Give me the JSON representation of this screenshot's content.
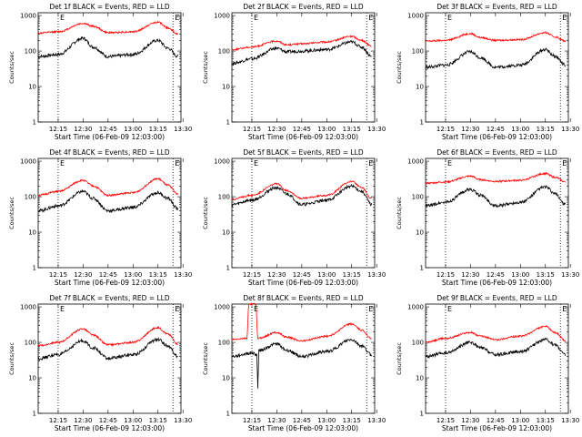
{
  "figure": {
    "panel_titles_note": "",
    "xlabel_template": "Start Time (06-Feb-09 12:03:00)"
  },
  "colors": {
    "events": "#000000",
    "lld": "#ff0000",
    "axes": "#000000",
    "marker": "#000000"
  },
  "chart_data": [
    {
      "type": "line",
      "title": "Det 1f BLACK = Events, RED = LLD",
      "xlabel": "Start Time (06-Feb-09 12:03:00)",
      "ylabel": "Counts/sec",
      "scale": "log",
      "x_ticks": [
        "12:15",
        "12:30",
        "12:45",
        "13:00",
        "13:15",
        "13:30"
      ],
      "y_ticks": [
        "1",
        "10",
        "100",
        "1000"
      ],
      "ylim": [
        1,
        1200
      ],
      "vlines": [
        "12:15",
        "13:24"
      ],
      "marker_labels": [
        "E",
        "E"
      ],
      "series": [
        {
          "values": [
            [
              12.05,
              70
            ],
            [
              12.25,
              80
            ],
            [
              12.5,
              230
            ],
            [
              12.6,
              130
            ],
            [
              12.75,
              70
            ],
            [
              13.0,
              80
            ],
            [
              13.25,
              200
            ],
            [
              13.35,
              120
            ],
            [
              13.45,
              70
            ]
          ]
        },
        {
          "values": [
            [
              12.05,
              320
            ],
            [
              12.25,
              350
            ],
            [
              12.5,
              600
            ],
            [
              12.6,
              500
            ],
            [
              12.75,
              330
            ],
            [
              13.0,
              350
            ],
            [
              13.25,
              650
            ],
            [
              13.35,
              450
            ],
            [
              13.45,
              300
            ]
          ]
        }
      ]
    },
    {
      "type": "line",
      "title": "Det 2f BLACK = Events, RED = LLD",
      "xlabel": "Start Time (06-Feb-09 12:03:00)",
      "ylabel": "Counts/sec",
      "scale": "log",
      "x_ticks": [
        "12:15",
        "12:30",
        "12:45",
        "13:00",
        "13:15",
        "13:30"
      ],
      "y_ticks": [
        "1",
        "10",
        "100",
        "1000"
      ],
      "ylim": [
        1,
        1200
      ],
      "vlines": [
        "12:15",
        "13:24"
      ],
      "marker_labels": [
        "E",
        "E"
      ],
      "series": [
        {
          "values": [
            [
              12.05,
              45
            ],
            [
              12.25,
              60
            ],
            [
              12.5,
              120
            ],
            [
              12.6,
              95
            ],
            [
              12.75,
              100
            ],
            [
              13.0,
              110
            ],
            [
              13.25,
              180
            ],
            [
              13.35,
              130
            ],
            [
              13.45,
              70
            ]
          ]
        },
        {
          "values": [
            [
              12.05,
              110
            ],
            [
              12.25,
              130
            ],
            [
              12.5,
              190
            ],
            [
              12.6,
              150
            ],
            [
              12.75,
              160
            ],
            [
              13.0,
              180
            ],
            [
              13.25,
              260
            ],
            [
              13.35,
              200
            ],
            [
              13.45,
              140
            ]
          ]
        }
      ]
    },
    {
      "type": "line",
      "title": "Det 3f BLACK = Events, RED = LLD",
      "xlabel": "Start Time (06-Feb-09 12:03:00)",
      "ylabel": "Counts/sec",
      "scale": "log",
      "x_ticks": [
        "12:15",
        "12:30",
        "12:45",
        "13:00",
        "13:15",
        "13:30"
      ],
      "y_ticks": [
        "1",
        "10",
        "100",
        "1000"
      ],
      "ylim": [
        1,
        1200
      ],
      "vlines": [
        "12:15",
        "13:24"
      ],
      "marker_labels": [
        "E",
        "E"
      ],
      "series": [
        {
          "values": [
            [
              12.05,
              35
            ],
            [
              12.25,
              40
            ],
            [
              12.5,
              95
            ],
            [
              12.6,
              65
            ],
            [
              12.75,
              35
            ],
            [
              13.0,
              40
            ],
            [
              13.25,
              110
            ],
            [
              13.35,
              70
            ],
            [
              13.45,
              40
            ]
          ]
        },
        {
          "values": [
            [
              12.05,
              190
            ],
            [
              12.25,
              200
            ],
            [
              12.5,
              310
            ],
            [
              12.6,
              240
            ],
            [
              12.75,
              200
            ],
            [
              13.0,
              210
            ],
            [
              13.25,
              330
            ],
            [
              13.35,
              250
            ],
            [
              13.45,
              190
            ]
          ]
        }
      ]
    },
    {
      "type": "line",
      "title": "Det 4f BLACK = Events, RED = LLD",
      "xlabel": "Start Time (06-Feb-09 12:03:00)",
      "ylabel": "Counts/sec",
      "scale": "log",
      "x_ticks": [
        "12:15",
        "12:30",
        "12:45",
        "13:00",
        "13:15",
        "13:30"
      ],
      "y_ticks": [
        "1",
        "10",
        "100",
        "1000"
      ],
      "ylim": [
        1,
        1200
      ],
      "vlines": [
        "12:15",
        "13:24"
      ],
      "marker_labels": [
        "E",
        "E"
      ],
      "series": [
        {
          "values": [
            [
              12.05,
              40
            ],
            [
              12.25,
              55
            ],
            [
              12.5,
              140
            ],
            [
              12.6,
              90
            ],
            [
              12.75,
              40
            ],
            [
              13.0,
              50
            ],
            [
              13.25,
              130
            ],
            [
              13.35,
              90
            ],
            [
              13.45,
              45
            ]
          ]
        },
        {
          "values": [
            [
              12.05,
              110
            ],
            [
              12.25,
              140
            ],
            [
              12.5,
              290
            ],
            [
              12.6,
              200
            ],
            [
              12.75,
              110
            ],
            [
              13.0,
              130
            ],
            [
              13.25,
              320
            ],
            [
              13.35,
              210
            ],
            [
              13.45,
              120
            ]
          ]
        }
      ]
    },
    {
      "type": "line",
      "title": "Det 5f BLACK = Events, RED = LLD",
      "xlabel": "Start Time (06-Feb-09 12:03:00)",
      "ylabel": "Counts/sec",
      "scale": "log",
      "x_ticks": [
        "12:15",
        "12:30",
        "12:45",
        "13:00",
        "13:15",
        "13:30"
      ],
      "y_ticks": [
        "1",
        "10",
        "100",
        "1000"
      ],
      "ylim": [
        1,
        1200
      ],
      "vlines": [
        "12:15",
        "13:24"
      ],
      "marker_labels": [
        "E",
        "E"
      ],
      "series": [
        {
          "values": [
            [
              12.05,
              60
            ],
            [
              12.25,
              80
            ],
            [
              12.5,
              180
            ],
            [
              12.6,
              120
            ],
            [
              12.75,
              60
            ],
            [
              13.0,
              80
            ],
            [
              13.25,
              200
            ],
            [
              13.35,
              140
            ],
            [
              13.45,
              60
            ]
          ]
        },
        {
          "values": [
            [
              12.05,
              85
            ],
            [
              12.25,
              110
            ],
            [
              12.5,
              230
            ],
            [
              12.6,
              150
            ],
            [
              12.75,
              90
            ],
            [
              13.0,
              110
            ],
            [
              13.25,
              270
            ],
            [
              13.35,
              180
            ],
            [
              13.45,
              90
            ]
          ]
        }
      ]
    },
    {
      "type": "line",
      "title": "Det 6f BLACK = Events, RED = LLD",
      "xlabel": "Start Time (06-Feb-09 12:03:00)",
      "ylabel": "Counts/sec",
      "scale": "log",
      "x_ticks": [
        "12:15",
        "12:30",
        "12:45",
        "13:00",
        "13:15",
        "13:30"
      ],
      "y_ticks": [
        "1",
        "10",
        "100",
        "1000"
      ],
      "ylim": [
        1,
        1200
      ],
      "vlines": [
        "12:15",
        "13:24"
      ],
      "marker_labels": [
        "E",
        "E"
      ],
      "series": [
        {
          "values": [
            [
              12.05,
              55
            ],
            [
              12.25,
              70
            ],
            [
              12.5,
              160
            ],
            [
              12.6,
              110
            ],
            [
              12.75,
              55
            ],
            [
              13.0,
              70
            ],
            [
              13.25,
              190
            ],
            [
              13.35,
              120
            ],
            [
              13.45,
              60
            ]
          ]
        },
        {
          "values": [
            [
              12.05,
              240
            ],
            [
              12.25,
              260
            ],
            [
              12.5,
              380
            ],
            [
              12.6,
              300
            ],
            [
              12.75,
              270
            ],
            [
              13.0,
              290
            ],
            [
              13.25,
              450
            ],
            [
              13.35,
              350
            ],
            [
              13.45,
              260
            ]
          ]
        }
      ]
    },
    {
      "type": "line",
      "title": "Det 7f BLACK = Events, RED = LLD",
      "xlabel": "Start Time (06-Feb-09 12:03:00)",
      "ylabel": "Counts/sec",
      "scale": "log",
      "x_ticks": [
        "12:15",
        "12:30",
        "12:45",
        "13:00",
        "13:15",
        "13:30"
      ],
      "y_ticks": [
        "1",
        "10",
        "100",
        "1000"
      ],
      "ylim": [
        1,
        1200
      ],
      "vlines": [
        "12:15",
        "13:24"
      ],
      "marker_labels": [
        "E",
        "E"
      ],
      "series": [
        {
          "values": [
            [
              12.05,
              35
            ],
            [
              12.25,
              45
            ],
            [
              12.5,
              110
            ],
            [
              12.6,
              70
            ],
            [
              12.75,
              35
            ],
            [
              13.0,
              45
            ],
            [
              13.25,
              120
            ],
            [
              13.35,
              80
            ],
            [
              13.45,
              40
            ]
          ]
        },
        {
          "values": [
            [
              12.05,
              80
            ],
            [
              12.25,
              100
            ],
            [
              12.5,
              240
            ],
            [
              12.6,
              160
            ],
            [
              12.75,
              85
            ],
            [
              13.0,
              100
            ],
            [
              13.25,
              260
            ],
            [
              13.35,
              170
            ],
            [
              13.45,
              90
            ]
          ]
        }
      ]
    },
    {
      "type": "line",
      "title": "Det 8f BLACK = Events, RED = LLD",
      "xlabel": "Start Time (06-Feb-09 12:03:00)",
      "ylabel": "Counts/sec",
      "scale": "log",
      "x_ticks": [
        "12:15",
        "12:30",
        "12:45",
        "13:00",
        "13:15",
        "13:30"
      ],
      "y_ticks": [
        "1",
        "10",
        "100",
        "1000"
      ],
      "ylim": [
        1,
        1200
      ],
      "vlines": [
        "12:15",
        "13:24"
      ],
      "marker_labels": [
        "E",
        "E"
      ],
      "series": [
        {
          "values": [
            [
              12.05,
              40
            ],
            [
              12.25,
              50
            ],
            [
              12.3,
              45
            ],
            [
              12.31,
              5
            ],
            [
              12.32,
              60
            ],
            [
              12.5,
              90
            ],
            [
              12.6,
              60
            ],
            [
              12.75,
              40
            ],
            [
              13.0,
              55
            ],
            [
              13.25,
              120
            ],
            [
              13.35,
              80
            ],
            [
              13.45,
              45
            ]
          ]
        },
        {
          "values": [
            [
              12.05,
              120
            ],
            [
              12.2,
              130
            ],
            [
              12.22,
              1200
            ],
            [
              12.29,
              1200
            ],
            [
              12.31,
              130
            ],
            [
              12.5,
              190
            ],
            [
              12.6,
              140
            ],
            [
              12.75,
              110
            ],
            [
              13.0,
              150
            ],
            [
              13.25,
              330
            ],
            [
              13.35,
              220
            ],
            [
              13.45,
              130
            ]
          ]
        }
      ]
    },
    {
      "type": "line",
      "title": "Det 9f BLACK = Events, RED = LLD",
      "xlabel": "Start Time (06-Feb-09 12:03:00)",
      "ylabel": "Counts/sec",
      "scale": "log",
      "x_ticks": [
        "12:15",
        "12:30",
        "12:45",
        "13:00",
        "13:15",
        "13:30"
      ],
      "y_ticks": [
        "1",
        "10",
        "100",
        "1000"
      ],
      "ylim": [
        1,
        1200
      ],
      "vlines": [
        "12:15",
        "13:24"
      ],
      "marker_labels": [
        "E",
        "E"
      ],
      "series": [
        {
          "values": [
            [
              12.05,
              40
            ],
            [
              12.25,
              50
            ],
            [
              12.5,
              100
            ],
            [
              12.6,
              70
            ],
            [
              12.75,
              45
            ],
            [
              13.0,
              55
            ],
            [
              13.25,
              120
            ],
            [
              13.35,
              85
            ],
            [
              13.45,
              45
            ]
          ]
        },
        {
          "values": [
            [
              12.05,
              100
            ],
            [
              12.25,
              130
            ],
            [
              12.5,
              190
            ],
            [
              12.6,
              150
            ],
            [
              12.75,
              120
            ],
            [
              13.0,
              150
            ],
            [
              13.25,
              280
            ],
            [
              13.35,
              190
            ],
            [
              13.45,
              110
            ]
          ]
        }
      ]
    }
  ]
}
